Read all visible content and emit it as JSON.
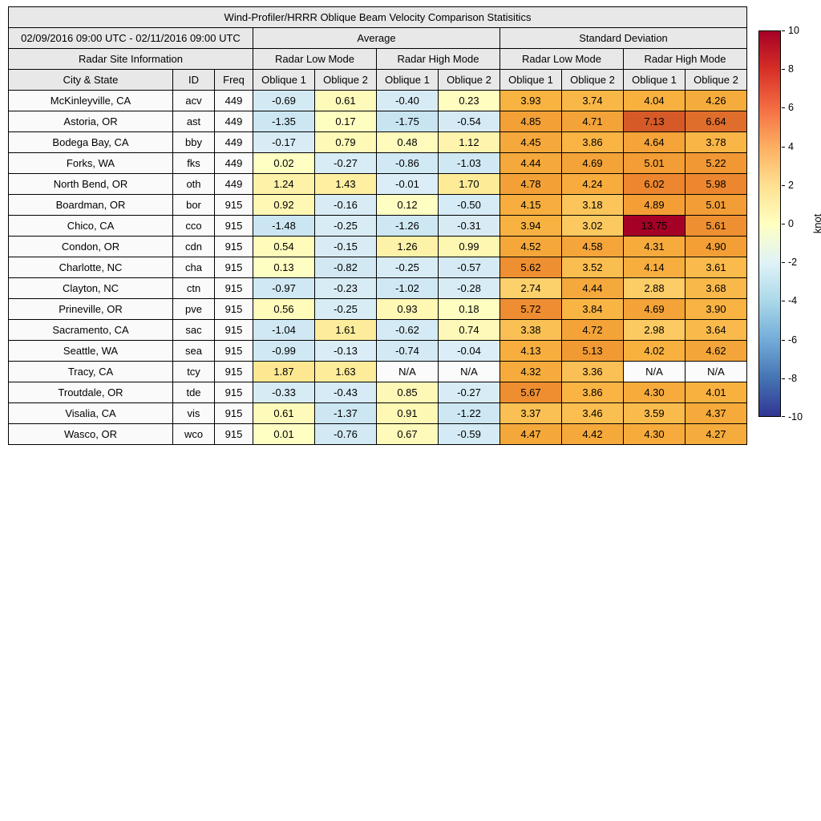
{
  "chart_data": {
    "type": "heatmap",
    "title": "Wind-Profiler/HRRR Oblique Beam Velocity Comparison Statisitics",
    "header": {
      "date_range": "02/09/2016 09:00 UTC - 02/11/2016 09:00 UTC",
      "group_average": "Average",
      "group_std": "Standard Deviation",
      "site_info": "Radar Site Information",
      "mode_low": "Radar Low Mode",
      "mode_high": "Radar High Mode",
      "col_city": "City & State",
      "col_id": "ID",
      "col_freq": "Freq",
      "oblique1": "Oblique 1",
      "oblique2": "Oblique 2"
    },
    "colorbar": {
      "label": "knot",
      "min": -10,
      "max": 10,
      "ticks": [
        10,
        8,
        6,
        4,
        2,
        0,
        -2,
        -4,
        -6,
        -8,
        -10
      ],
      "colors_top_to_bottom": [
        "#a50026",
        "#d73027",
        "#f46d43",
        "#fdae61",
        "#fee090",
        "#ffffbf",
        "#e0f3f8",
        "#abd9e9",
        "#74add9",
        "#4575b4",
        "#313695"
      ]
    },
    "rows": [
      {
        "city": "McKinleyville, CA",
        "id": "acv",
        "freq": "449",
        "values": [
          "-0.69",
          "0.61",
          "-0.40",
          "0.23",
          "3.93",
          "3.74",
          "4.04",
          "4.26"
        ]
      },
      {
        "city": "Astoria, OR",
        "id": "ast",
        "freq": "449",
        "values": [
          "-1.35",
          "0.17",
          "-1.75",
          "-0.54",
          "4.85",
          "4.71",
          "7.13",
          "6.64"
        ]
      },
      {
        "city": "Bodega Bay, CA",
        "id": "bby",
        "freq": "449",
        "values": [
          "-0.17",
          "0.79",
          "0.48",
          "1.12",
          "4.45",
          "3.86",
          "4.64",
          "3.78"
        ]
      },
      {
        "city": "Forks, WA",
        "id": "fks",
        "freq": "449",
        "values": [
          "0.02",
          "-0.27",
          "-0.86",
          "-1.03",
          "4.44",
          "4.69",
          "5.01",
          "5.22"
        ]
      },
      {
        "city": "North Bend, OR",
        "id": "oth",
        "freq": "449",
        "values": [
          "1.24",
          "1.43",
          "-0.01",
          "1.70",
          "4.78",
          "4.24",
          "6.02",
          "5.98"
        ]
      },
      {
        "city": "Boardman, OR",
        "id": "bor",
        "freq": "915",
        "values": [
          "0.92",
          "-0.16",
          "0.12",
          "-0.50",
          "4.15",
          "3.18",
          "4.89",
          "5.01"
        ]
      },
      {
        "city": "Chico, CA",
        "id": "cco",
        "freq": "915",
        "values": [
          "-1.48",
          "-0.25",
          "-1.26",
          "-0.31",
          "3.94",
          "3.02",
          "13.75",
          "5.61"
        ]
      },
      {
        "city": "Condon, OR",
        "id": "cdn",
        "freq": "915",
        "values": [
          "0.54",
          "-0.15",
          "1.26",
          "0.99",
          "4.52",
          "4.58",
          "4.31",
          "4.90"
        ]
      },
      {
        "city": "Charlotte, NC",
        "id": "cha",
        "freq": "915",
        "values": [
          "0.13",
          "-0.82",
          "-0.25",
          "-0.57",
          "5.62",
          "3.52",
          "4.14",
          "3.61"
        ]
      },
      {
        "city": "Clayton, NC",
        "id": "ctn",
        "freq": "915",
        "values": [
          "-0.97",
          "-0.23",
          "-1.02",
          "-0.28",
          "2.74",
          "4.44",
          "2.88",
          "3.68"
        ]
      },
      {
        "city": "Prineville, OR",
        "id": "pve",
        "freq": "915",
        "values": [
          "0.56",
          "-0.25",
          "0.93",
          "0.18",
          "5.72",
          "3.84",
          "4.69",
          "3.90"
        ]
      },
      {
        "city": "Sacramento, CA",
        "id": "sac",
        "freq": "915",
        "values": [
          "-1.04",
          "1.61",
          "-0.62",
          "0.74",
          "3.38",
          "4.72",
          "2.98",
          "3.64"
        ]
      },
      {
        "city": "Seattle, WA",
        "id": "sea",
        "freq": "915",
        "values": [
          "-0.99",
          "-0.13",
          "-0.74",
          "-0.04",
          "4.13",
          "5.13",
          "4.02",
          "4.62"
        ]
      },
      {
        "city": "Tracy, CA",
        "id": "tcy",
        "freq": "915",
        "values": [
          "1.87",
          "1.63",
          "N/A",
          "N/A",
          "4.32",
          "3.36",
          "N/A",
          "N/A"
        ]
      },
      {
        "city": "Troutdale, OR",
        "id": "tde",
        "freq": "915",
        "values": [
          "-0.33",
          "-0.43",
          "0.85",
          "-0.27",
          "5.67",
          "3.86",
          "4.30",
          "4.01"
        ]
      },
      {
        "city": "Visalia, CA",
        "id": "vis",
        "freq": "915",
        "values": [
          "0.61",
          "-1.37",
          "0.91",
          "-1.22",
          "3.37",
          "3.46",
          "3.59",
          "4.37"
        ]
      },
      {
        "city": "Wasco, OR",
        "id": "wco",
        "freq": "915",
        "values": [
          "0.01",
          "-0.76",
          "0.67",
          "-0.59",
          "4.47",
          "4.42",
          "4.30",
          "4.27"
        ]
      }
    ]
  }
}
